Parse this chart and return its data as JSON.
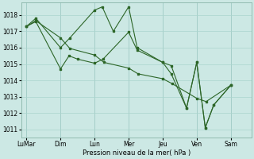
{
  "background_color": "#cce8e4",
  "grid_color": "#aad4ce",
  "line_color": "#2d6628",
  "xlabel": "Pression niveau de la mer( hPa )",
  "ylim": [
    1010.5,
    1018.75
  ],
  "yticks": [
    1011,
    1012,
    1013,
    1014,
    1015,
    1016,
    1017,
    1018
  ],
  "xlim": [
    -0.3,
    13.2
  ],
  "x_tick_pos": [
    0,
    2,
    4,
    6,
    8,
    10,
    12
  ],
  "x_tick_labels": [
    "LuMar",
    "Dim",
    "Lun",
    "Mer",
    "Jeu",
    "Ven",
    "Sam"
  ],
  "line1_x": [
    0.0,
    0.55,
    2.0,
    2.55,
    4.0,
    4.55,
    6.0,
    6.55,
    8.0,
    8.55,
    10.0,
    10.55,
    12.0
  ],
  "line1_y": [
    1017.3,
    1017.65,
    1016.6,
    1015.95,
    1015.55,
    1015.1,
    1014.75,
    1014.4,
    1014.1,
    1013.8,
    1012.9,
    1012.7,
    1013.7
  ],
  "line2_x": [
    0.0,
    0.55,
    2.0,
    2.55,
    4.0,
    4.45,
    5.1,
    6.0,
    6.5,
    8.0,
    8.5,
    9.4,
    10.0,
    10.5,
    11.0,
    12.0
  ],
  "line2_y": [
    1017.3,
    1017.8,
    1016.0,
    1016.6,
    1018.3,
    1018.5,
    1017.0,
    1018.5,
    1016.0,
    1015.1,
    1014.9,
    1012.3,
    1015.1,
    1011.1,
    1012.5,
    1013.7
  ],
  "line3_x": [
    0.0,
    0.55,
    2.0,
    2.5,
    3.0,
    4.0,
    4.5,
    6.0,
    6.5,
    8.0,
    8.5,
    9.4,
    10.0,
    10.5,
    11.0,
    12.0
  ],
  "line3_y": [
    1017.3,
    1017.6,
    1014.7,
    1015.5,
    1015.3,
    1015.05,
    1015.3,
    1016.95,
    1015.85,
    1015.1,
    1014.4,
    1012.3,
    1015.1,
    1011.1,
    1012.5,
    1013.7
  ],
  "ytick_fontsize": 5.5,
  "xtick_fontsize": 5.5,
  "xlabel_fontsize": 6.0
}
